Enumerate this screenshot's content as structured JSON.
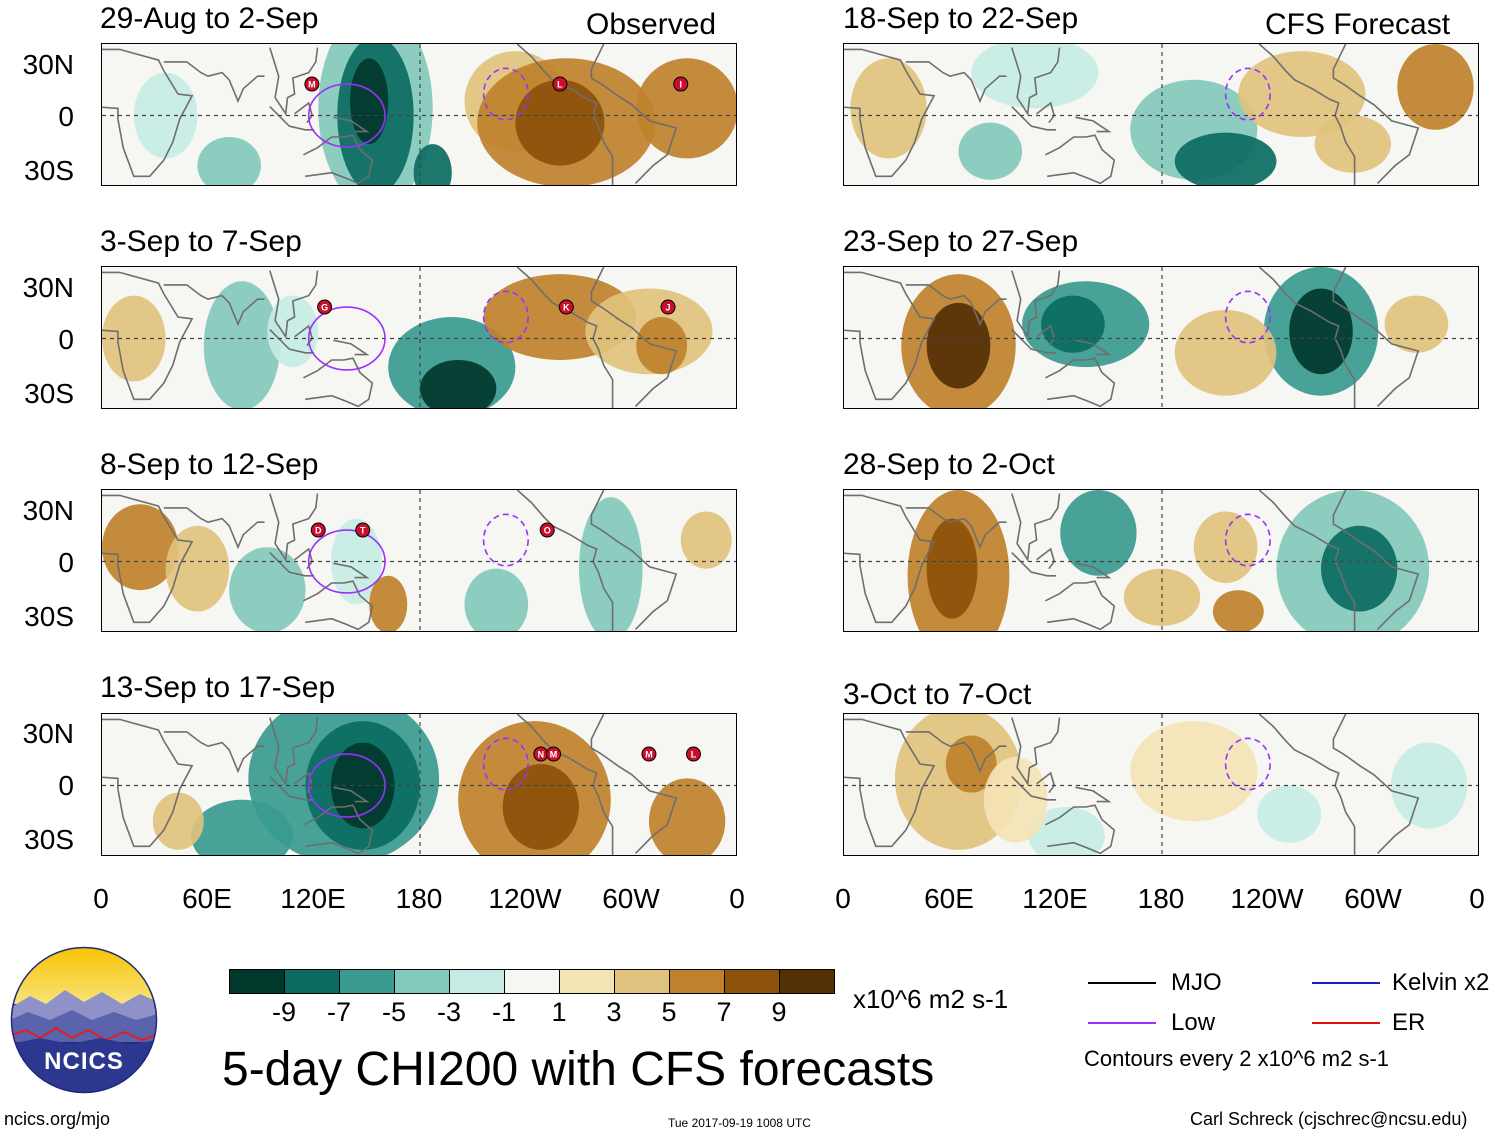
{
  "figure": {
    "title": "5-day CHI200 with CFS forecasts",
    "units_label": "x10^6 m2 s-1",
    "observed_label": "Observed",
    "forecast_label": "CFS Forecast",
    "contour_note": "Contours every 2 x10^6 m2 s-1",
    "site": "ncics.org/mjo",
    "timestamp": "Tue 2017-09-19 1008 UTC",
    "author": "Carl Schreck (cjschrec@ncsu.edu)",
    "logo_text": "NCICS"
  },
  "chart_data": {
    "type": "heatmap",
    "variable": "CHI200 anomaly (x10^6 m2 s-1)",
    "lat_ticks": [
      "30N",
      "0",
      "30S"
    ],
    "lon_ticks": [
      "0",
      "60E",
      "120E",
      "180",
      "120W",
      "60W",
      "0"
    ],
    "colorbar": {
      "ticks": [
        "-9",
        "-7",
        "-5",
        "-3",
        "-1",
        "1",
        "3",
        "5",
        "7",
        "9"
      ],
      "colors": [
        "#02382c",
        "#0b6b62",
        "#3a9a8f",
        "#82c9bc",
        "#c6ebe4",
        "#f6f6f3",
        "#f4e3b5",
        "#dfc27d",
        "#bf812d",
        "#8c510a",
        "#543005"
      ]
    },
    "observed_panels": [
      {
        "title": "29-Aug to 2-Sep",
        "storms": [
          "M",
          "L",
          "I"
        ]
      },
      {
        "title": "3-Sep to 7-Sep",
        "storms": [
          "G",
          "K",
          "J"
        ]
      },
      {
        "title": "8-Sep to 12-Sep",
        "storms": [
          "D",
          "T",
          "O"
        ]
      },
      {
        "title": "13-Sep to 17-Sep",
        "storms": [
          "N",
          "M",
          "M",
          "L"
        ]
      }
    ],
    "forecast_panels": [
      {
        "title": "18-Sep to 22-Sep"
      },
      {
        "title": "23-Sep to 27-Sep"
      },
      {
        "title": "28-Sep to 2-Oct"
      },
      {
        "title": "3-Oct to 7-Oct"
      }
    ]
  },
  "legend": {
    "items": [
      {
        "label": "MJO",
        "color": "#000000"
      },
      {
        "label": "Kelvin x2",
        "color": "#1a1adb"
      },
      {
        "label": "Low",
        "color": "#9b30ff"
      },
      {
        "label": "ER",
        "color": "#e01010"
      }
    ]
  }
}
